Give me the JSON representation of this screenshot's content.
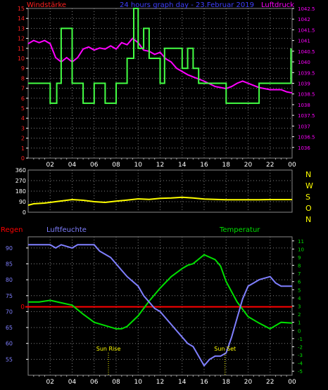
{
  "colors": {
    "wind_label": "#ff2020",
    "title": "#3f3fff",
    "pressure": "#ff00ff",
    "wind": "#44ff44",
    "direction": "#ffff00",
    "humidity": "#7f7fff",
    "temperature": "#00e000",
    "rain": "#ff0000",
    "sun": "#ffff00",
    "axis": "#ffffff",
    "grid": "#808080",
    "hour_tick": "#b0b0b0"
  },
  "chart_data": [
    {
      "type": "line",
      "title": "24 hours graph day - 23.Februar 2019",
      "left_label": "Windstärke",
      "right_label": "Luftdruck",
      "x_ticks": [
        "02",
        "04",
        "06",
        "08",
        "10",
        "12",
        "14",
        "16",
        "18",
        "20",
        "22",
        "00"
      ],
      "left_ticks": [
        "0",
        "1",
        "2",
        "3",
        "4",
        "5",
        "6",
        "7",
        "8",
        "9",
        "10",
        "11",
        "12",
        "13",
        "14",
        "15"
      ],
      "right_ticks": [
        "1036",
        "1036.5",
        "1037",
        "1037.5",
        "1038",
        "1038.5",
        "1039",
        "1039.5",
        "1040",
        "1040.5",
        "1041",
        "1041.5",
        "1042",
        "1042.5"
      ],
      "left_range": [
        0,
        15
      ],
      "right_range": [
        1035.5,
        1042.5
      ],
      "x_range": [
        0,
        24
      ],
      "series": [
        {
          "name": "Windstärke",
          "axis": "left",
          "points": [
            [
              0,
              7.5
            ],
            [
              2,
              7.5
            ],
            [
              2,
              5.5
            ],
            [
              2.6,
              5.5
            ],
            [
              2.6,
              7.5
            ],
            [
              3,
              7.5
            ],
            [
              3,
              13
            ],
            [
              4,
              13
            ],
            [
              4,
              7.5
            ],
            [
              5,
              7.5
            ],
            [
              5,
              5.5
            ],
            [
              6,
              5.5
            ],
            [
              6,
              7.5
            ],
            [
              7,
              7.5
            ],
            [
              7,
              5.5
            ],
            [
              8,
              5.5
            ],
            [
              8,
              7.5
            ],
            [
              9,
              7.5
            ],
            [
              9,
              10
            ],
            [
              9.6,
              10
            ],
            [
              9.6,
              15
            ],
            [
              10,
              15
            ],
            [
              10,
              11
            ],
            [
              10.5,
              11
            ],
            [
              10.5,
              13
            ],
            [
              11,
              13
            ],
            [
              11,
              10
            ],
            [
              12,
              10
            ],
            [
              12,
              7.5
            ],
            [
              12.4,
              7.5
            ],
            [
              12.4,
              11
            ],
            [
              14,
              11
            ],
            [
              14,
              9
            ],
            [
              14.5,
              9
            ],
            [
              14.5,
              11
            ],
            [
              15,
              11
            ],
            [
              15,
              9
            ],
            [
              15.5,
              9
            ],
            [
              15.5,
              7.5
            ],
            [
              18,
              7.5
            ],
            [
              18,
              5.5
            ],
            [
              21,
              5.5
            ],
            [
              21,
              7.5
            ],
            [
              23.9,
              7.5
            ],
            [
              23.9,
              11
            ]
          ]
        },
        {
          "name": "Luftdruck",
          "axis": "right",
          "points": [
            [
              0,
              1040.85
            ],
            [
              0.5,
              1041.0
            ],
            [
              1,
              1040.9
            ],
            [
              1.5,
              1041.0
            ],
            [
              2,
              1040.85
            ],
            [
              2.5,
              1040.2
            ],
            [
              3,
              1040.0
            ],
            [
              3.5,
              1040.2
            ],
            [
              4,
              1040.0
            ],
            [
              4.5,
              1040.2
            ],
            [
              5,
              1040.6
            ],
            [
              5.5,
              1040.7
            ],
            [
              6,
              1040.55
            ],
            [
              6.5,
              1040.65
            ],
            [
              7,
              1040.6
            ],
            [
              7.5,
              1040.75
            ],
            [
              8,
              1040.6
            ],
            [
              8.5,
              1040.9
            ],
            [
              9,
              1040.8
            ],
            [
              9.5,
              1041.1
            ],
            [
              10,
              1040.9
            ],
            [
              10.5,
              1040.55
            ],
            [
              11,
              1040.5
            ],
            [
              11.5,
              1040.35
            ],
            [
              12,
              1040.45
            ],
            [
              12.5,
              1040.15
            ],
            [
              13,
              1040.0
            ],
            [
              13.5,
              1039.7
            ],
            [
              14,
              1039.55
            ],
            [
              14.5,
              1039.4
            ],
            [
              15,
              1039.3
            ],
            [
              16,
              1039.1
            ],
            [
              17,
              1038.85
            ],
            [
              18,
              1038.75
            ],
            [
              18.5,
              1038.85
            ],
            [
              19,
              1039.0
            ],
            [
              19.5,
              1039.1
            ],
            [
              20,
              1039.0
            ],
            [
              21,
              1038.8
            ],
            [
              22,
              1038.7
            ],
            [
              23,
              1038.7
            ],
            [
              23.5,
              1038.6
            ],
            [
              24,
              1038.55
            ]
          ]
        }
      ]
    },
    {
      "type": "line",
      "left_ticks": [
        "0",
        "90",
        "180",
        "270",
        "360"
      ],
      "right_ticks": [
        "N",
        "W",
        "S",
        "O",
        "N"
      ],
      "y_range": [
        0,
        360
      ],
      "x_range": [
        0,
        24
      ],
      "series": [
        {
          "name": "Windrichtung",
          "points": [
            [
              0,
              60
            ],
            [
              0.5,
              72
            ],
            [
              1,
              75
            ],
            [
              1.5,
              78
            ],
            [
              2,
              84
            ],
            [
              3,
              96
            ],
            [
              4,
              108
            ],
            [
              5,
              102
            ],
            [
              6,
              90
            ],
            [
              7,
              84
            ],
            [
              8,
              94
            ],
            [
              9,
              104
            ],
            [
              10,
              114
            ],
            [
              11,
              110
            ],
            [
              12,
              118
            ],
            [
              13,
              122
            ],
            [
              14,
              128
            ],
            [
              15,
              122
            ],
            [
              16,
              112
            ],
            [
              17,
              110
            ],
            [
              18,
              106
            ],
            [
              19,
              106
            ],
            [
              20,
              106
            ],
            [
              21,
              106
            ],
            [
              22,
              108
            ],
            [
              23,
              108
            ],
            [
              24,
              108
            ]
          ]
        }
      ]
    },
    {
      "type": "line",
      "left_label": "Regen",
      "humidity_label": "Luftfeuchte",
      "temperature_label": "Temperatur",
      "x_ticks": [
        "02",
        "04",
        "06",
        "08",
        "10",
        "12",
        "14",
        "16",
        "18",
        "20",
        "22",
        "00"
      ],
      "humidity_ticks": [
        "55",
        "60",
        "65",
        "70",
        "75",
        "80",
        "85",
        "90"
      ],
      "rain_tick": "0",
      "temperature_ticks": [
        "-5",
        "-4",
        "-3",
        "-2",
        "-1",
        "0",
        "1",
        "2",
        "3",
        "4",
        "5",
        "6",
        "7",
        "8",
        "9",
        "10",
        "11"
      ],
      "humidity_range": [
        50,
        93.5
      ],
      "temperature_range": [
        -5.5,
        11.5
      ],
      "rain_value": 0,
      "sun_rise_label": "Sun Rise",
      "sun_set_label": "Sun Set",
      "sun_rise_x": 7.3,
      "sun_set_x": 17.9,
      "series": [
        {
          "name": "Luftfeuchte",
          "axis": "humidity",
          "points": [
            [
              0,
              91
            ],
            [
              1,
              91
            ],
            [
              2,
              91
            ],
            [
              2.5,
              90
            ],
            [
              3,
              91
            ],
            [
              4,
              90
            ],
            [
              4.5,
              91
            ],
            [
              5,
              91
            ],
            [
              6,
              91
            ],
            [
              6.5,
              89
            ],
            [
              7,
              88
            ],
            [
              7.5,
              87
            ],
            [
              8,
              85
            ],
            [
              8.5,
              83
            ],
            [
              9,
              81
            ],
            [
              10,
              78
            ],
            [
              10.5,
              75
            ],
            [
              11,
              73
            ],
            [
              11.5,
              71
            ],
            [
              12,
              70
            ],
            [
              12.5,
              68
            ],
            [
              13,
              66
            ],
            [
              13.5,
              64
            ],
            [
              14,
              62
            ],
            [
              14.5,
              60
            ],
            [
              15,
              59
            ],
            [
              15.5,
              56
            ],
            [
              16,
              53
            ],
            [
              16.5,
              55
            ],
            [
              17,
              56
            ],
            [
              17.5,
              56
            ],
            [
              18,
              57
            ],
            [
              18.5,
              62
            ],
            [
              19,
              68
            ],
            [
              19.5,
              74
            ],
            [
              20,
              78
            ],
            [
              20.5,
              79
            ],
            [
              21,
              80
            ],
            [
              22,
              81
            ],
            [
              22.5,
              79
            ],
            [
              23,
              78
            ],
            [
              24,
              78
            ]
          ]
        },
        {
          "name": "Temperatur",
          "axis": "temperature",
          "points": [
            [
              0,
              3.5
            ],
            [
              1,
              3.5
            ],
            [
              2,
              3.7
            ],
            [
              3,
              3.4
            ],
            [
              4,
              3.1
            ],
            [
              5,
              2.0
            ],
            [
              6,
              1.0
            ],
            [
              7,
              0.6
            ],
            [
              8,
              0.2
            ],
            [
              8.5,
              0.2
            ],
            [
              9,
              0.5
            ],
            [
              10,
              1.8
            ],
            [
              11,
              3.6
            ],
            [
              12,
              5.2
            ],
            [
              13,
              6.6
            ],
            [
              14,
              7.6
            ],
            [
              14.5,
              8.0
            ],
            [
              15,
              8.2
            ],
            [
              16,
              9.3
            ],
            [
              17,
              8.7
            ],
            [
              17.5,
              7.9
            ],
            [
              18,
              6.0
            ],
            [
              19,
              3.5
            ],
            [
              20,
              1.7
            ],
            [
              21,
              0.9
            ],
            [
              22,
              0.2
            ],
            [
              23,
              1.0
            ],
            [
              24,
              0.9
            ]
          ]
        }
      ]
    }
  ]
}
